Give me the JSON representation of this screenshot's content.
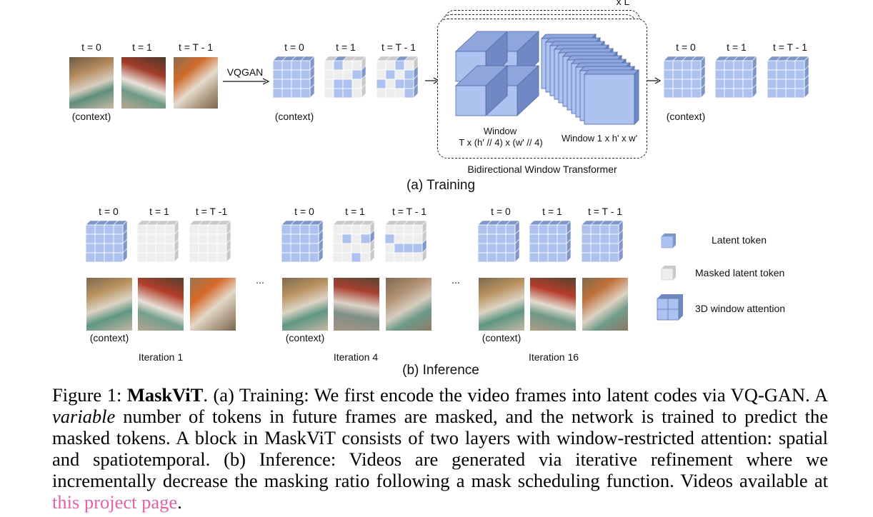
{
  "training": {
    "context_label": "(context)",
    "t_labels": [
      "t = 0",
      "t = 1",
      "t = T - 1"
    ],
    "vqgan_label": "VQGAN",
    "repeat_label": "x L",
    "window_spatiotemporal_label": "Window",
    "window_spatiotemporal_dims": "T x (h' // 4) x (w' // 4)",
    "window_spatial_label": "Window 1 x h' x w'",
    "transformer_label": "Bidirectional Window Transformer",
    "section_label": "(a) Training"
  },
  "inference": {
    "t_labels": [
      "t = 0",
      "t = 1",
      "t = T -1"
    ],
    "t_labels_b": [
      "t = 0",
      "t = 1",
      "t = T - 1"
    ],
    "context_label": "(context)",
    "ellipsis": "...",
    "iterations": [
      "Iteration 1",
      "Iteration 4",
      "Iteration 16"
    ],
    "section_label": "(b) Inference"
  },
  "legend": {
    "items": [
      {
        "label": "Latent token",
        "icon": "latent-token-icon"
      },
      {
        "label": "Masked latent token",
        "icon": "masked-token-icon"
      },
      {
        "label": "3D window attention",
        "icon": "window-attention-icon"
      }
    ]
  },
  "caption": {
    "prefix": "Figure 1: ",
    "name": "MaskViT",
    "part1": ". (a) Training: We first encode the video frames into latent codes via VQ-GAN. A ",
    "variable": "variable",
    "part2": " number of tokens in future frames are masked, and the network is trained to predict the masked tokens. A block in MaskViT consists of two layers with window-restricted attention: spatial and spatiotemporal. (b) Inference: Videos are generated via iterative refinement where we incrementally decrease the masking ratio following a mask scheduling function. Videos available at ",
    "link_text": "this project page",
    "suffix": "."
  },
  "colors": {
    "latent": "#aec2ef",
    "latent_dark": "#7f96c9",
    "masked": "#eeeeee",
    "masked_dark": "#c9c9c9",
    "link": "#e062a8"
  }
}
